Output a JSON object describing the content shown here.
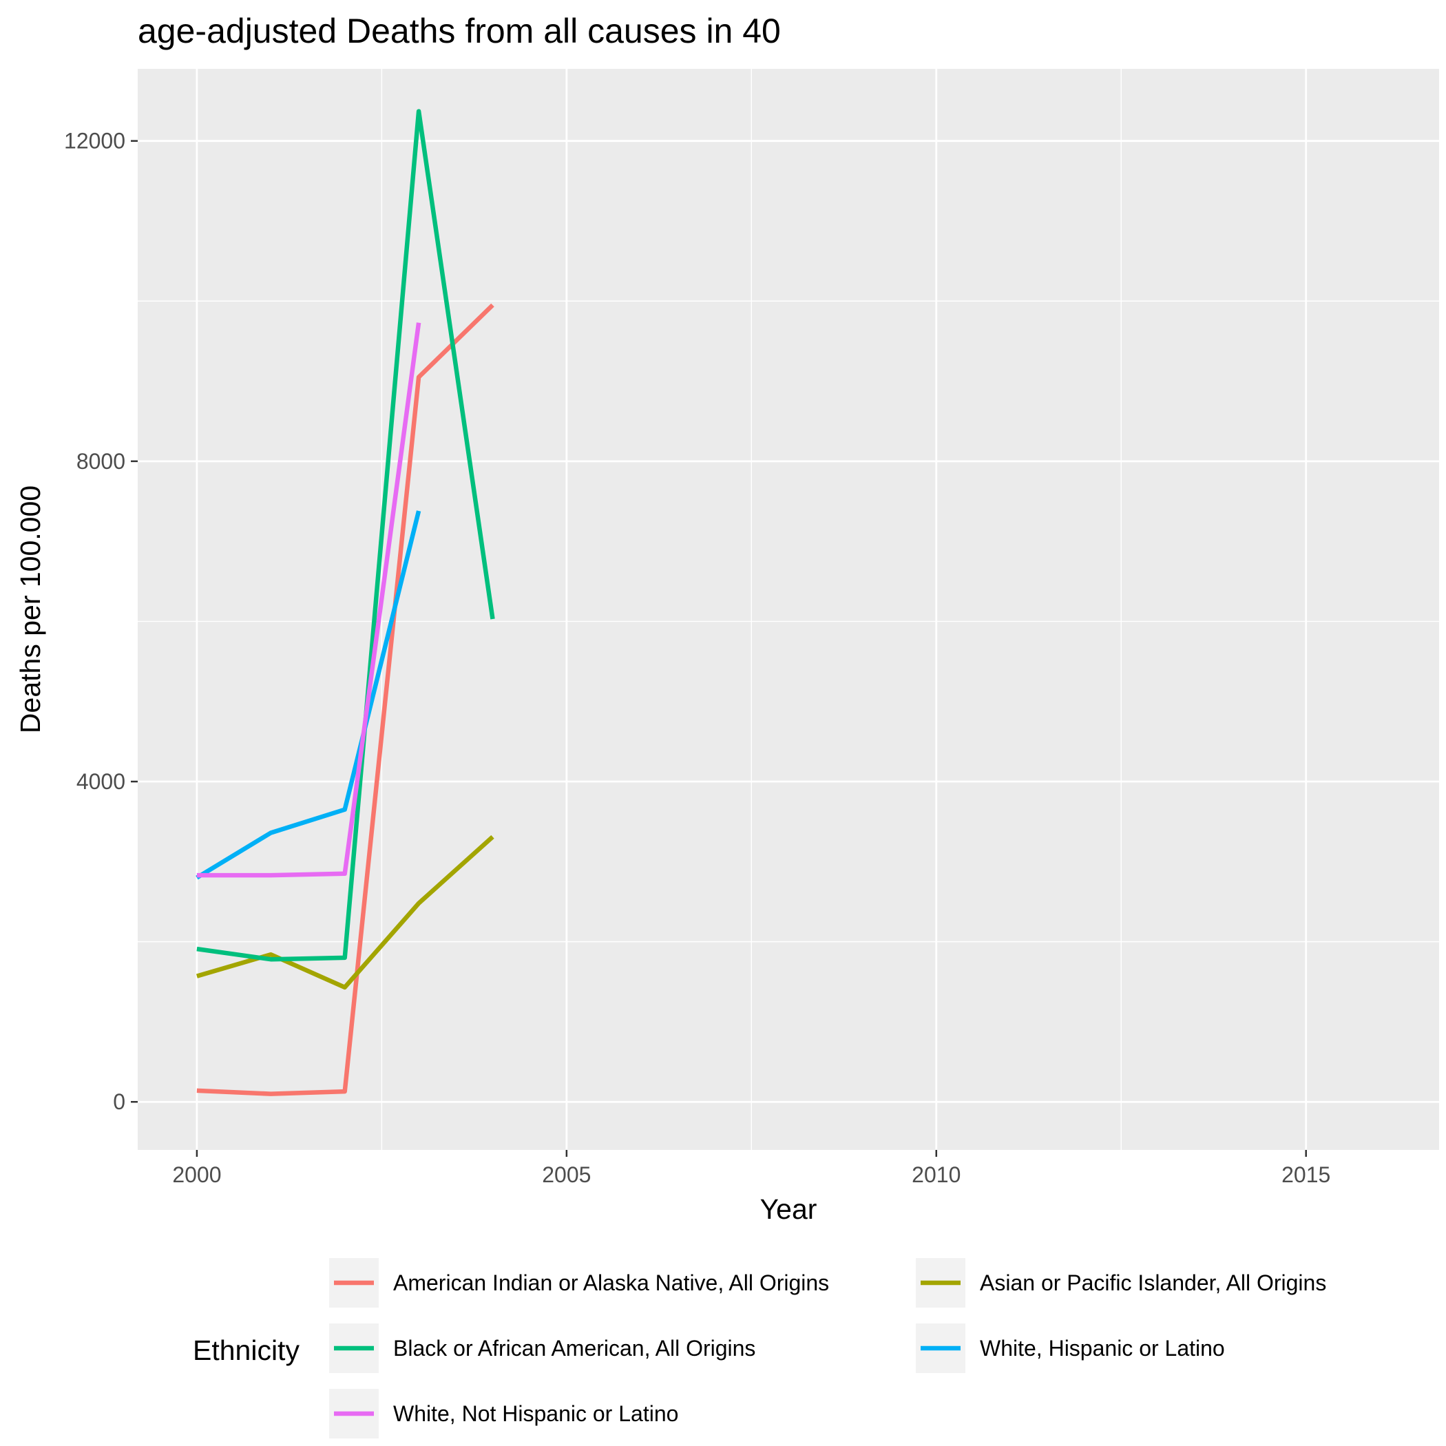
{
  "chart_data": {
    "type": "line",
    "title": "age-adjusted Deaths from all causes in 40",
    "xlabel": "Year",
    "ylabel": "Deaths per 100.000",
    "xlim": [
      1999.2,
      2016.8
    ],
    "ylim": [
      -600,
      12900
    ],
    "x_ticks": [
      2000,
      2005,
      2010,
      2015
    ],
    "x_tick_labels": [
      "2000",
      "2005",
      "2010",
      "2015"
    ],
    "y_ticks": [
      0,
      4000,
      8000,
      12000
    ],
    "y_tick_labels": [
      "0",
      "4000",
      "8000",
      "12000"
    ],
    "grid": true,
    "legend": {
      "title": "Ethnicity",
      "position": "bottom"
    },
    "series": [
      {
        "name": "American Indian or Alaska Native, All Origins",
        "color": "#F8766D",
        "x": [
          2000,
          2001,
          2002,
          2003,
          2004
        ],
        "y": [
          140,
          100,
          130,
          9050,
          9950
        ]
      },
      {
        "name": "Asian or Pacific Islander, All Origins",
        "color": "#A3A500",
        "x": [
          2000,
          2001,
          2002,
          2003,
          2004
        ],
        "y": [
          1570,
          1840,
          1430,
          2480,
          3310
        ]
      },
      {
        "name": "Black or African American, All Origins",
        "color": "#00BF7D",
        "x": [
          2000,
          2001,
          2002,
          2003,
          2004
        ],
        "y": [
          1910,
          1780,
          1800,
          12370,
          6030
        ]
      },
      {
        "name": "White, Hispanic or Latino",
        "color": "#00B0F6",
        "x": [
          2000,
          2001,
          2002,
          2003
        ],
        "y": [
          2800,
          3360,
          3650,
          7380
        ]
      },
      {
        "name": "White, Not Hispanic or Latino",
        "color": "#E76BF3",
        "x": [
          2000,
          2001,
          2002,
          2003
        ],
        "y": [
          2830,
          2830,
          2850,
          9730
        ]
      }
    ]
  }
}
